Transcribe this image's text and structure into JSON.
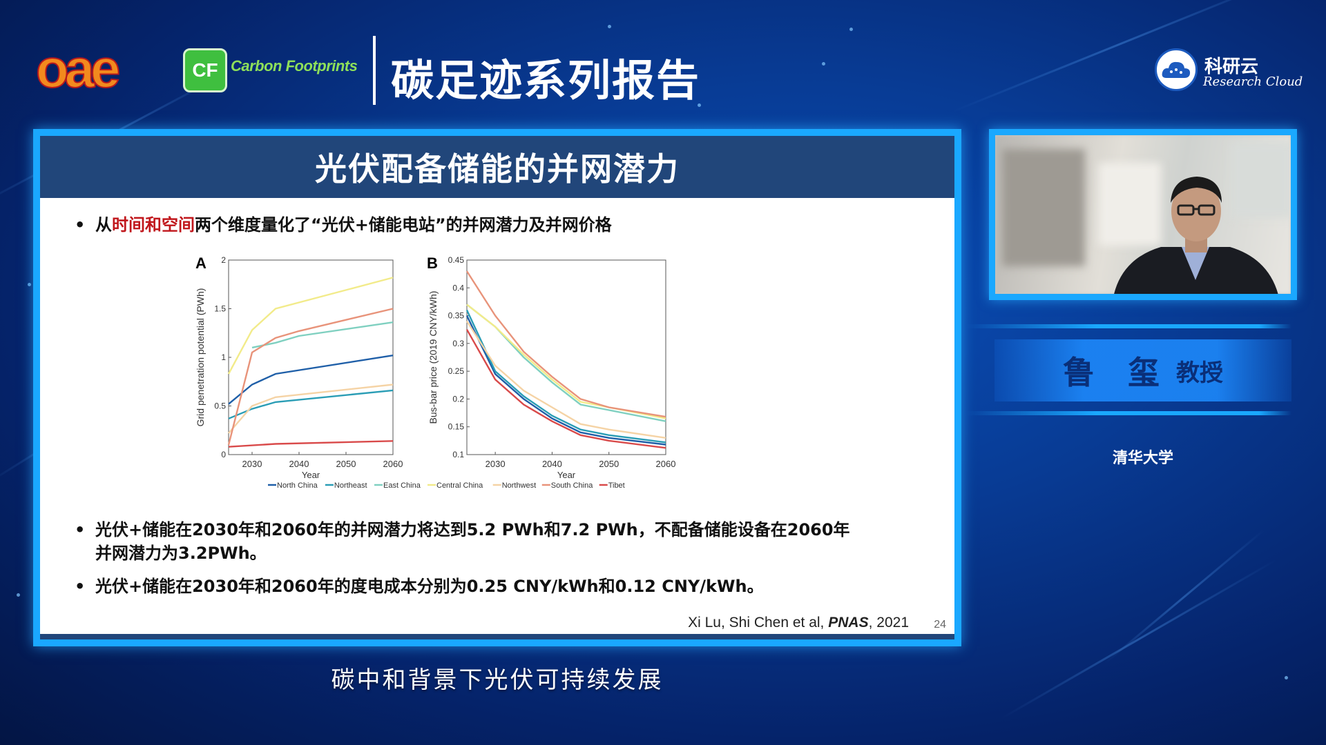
{
  "header": {
    "logo_text": "oae",
    "cf_badge": "CF",
    "cf_text": "Carbon Footprints",
    "title": "碳足迹系列报告",
    "brand_name": "科研云",
    "brand_sub": "Research Cloud"
  },
  "slide": {
    "title": "光伏配备储能的并网潜力",
    "bullet1": {
      "prefix": "从",
      "highlight": "时间和空间",
      "suffix": "两个维度量化了“光伏+储能电站”的并网潜力及并网价格"
    },
    "bullet2_line1": "光伏+储能在2030年和2060年的并网潜力将达到5.2 PWh和7.2 PWh，不配备储能设备在2060年",
    "bullet2_line2": "并网潜力为3.2PWh。",
    "bullet3": "光伏+储能在2030年和2060年的度电成本分别为0.25 CNY/kWh和0.12 CNY/kWh。",
    "bullet_mark": "•",
    "citation_authors": "Xi Lu, Shi Chen et al,",
    "citation_journal": "PNAS",
    "citation_year": ", 2021",
    "page_number": "24"
  },
  "speaker": {
    "name": "鲁 玺",
    "role": "教授",
    "affiliation": "清华大学"
  },
  "caption": "碳中和背景下光伏可持续发展",
  "chart_data": [
    {
      "type": "line",
      "panel_label": "A",
      "ylabel": "Grid penetration potential (PWh)",
      "xlabel": "Year",
      "xlim": [
        2025,
        2060
      ],
      "ylim": [
        0,
        2
      ],
      "xticks": [
        2030,
        2040,
        2050,
        2060
      ],
      "yticks": [
        0,
        0.5,
        1,
        1.5,
        2
      ],
      "ytick_labels": [
        "0",
        "0.5",
        "1",
        "1.5",
        "2"
      ],
      "series": [
        {
          "name": "North China",
          "color": "#1f5fa8",
          "points": [
            [
              2025,
              0.52
            ],
            [
              2030,
              0.72
            ],
            [
              2035,
              0.83
            ],
            [
              2060,
              1.02
            ]
          ]
        },
        {
          "name": "Northeast",
          "color": "#2a9db5",
          "points": [
            [
              2025,
              0.37
            ],
            [
              2030,
              0.47
            ],
            [
              2035,
              0.54
            ],
            [
              2060,
              0.66
            ]
          ]
        },
        {
          "name": "East China",
          "color": "#7fd0c0",
          "points": [
            [
              2030,
              1.1
            ],
            [
              2035,
              1.15
            ],
            [
              2040,
              1.22
            ],
            [
              2060,
              1.36
            ]
          ]
        },
        {
          "name": "Central China",
          "color": "#f2eb8a",
          "points": [
            [
              2025,
              0.83
            ],
            [
              2030,
              1.28
            ],
            [
              2035,
              1.5
            ],
            [
              2060,
              1.82
            ]
          ]
        },
        {
          "name": "Northwest",
          "color": "#f5d3a5",
          "points": [
            [
              2025,
              0.22
            ],
            [
              2030,
              0.5
            ],
            [
              2035,
              0.59
            ],
            [
              2060,
              0.72
            ]
          ]
        },
        {
          "name": "South China",
          "color": "#e8937a",
          "points": [
            [
              2025,
              0.1
            ],
            [
              2030,
              1.05
            ],
            [
              2035,
              1.2
            ],
            [
              2040,
              1.27
            ],
            [
              2060,
              1.5
            ]
          ]
        },
        {
          "name": "Tibet",
          "color": "#d94a4a",
          "points": [
            [
              2025,
              0.08
            ],
            [
              2035,
              0.11
            ],
            [
              2060,
              0.14
            ]
          ]
        }
      ]
    },
    {
      "type": "line",
      "panel_label": "B",
      "ylabel": "Bus-bar price (2019 CNY/kWh)",
      "xlabel": "Year",
      "xlim": [
        2025,
        2060
      ],
      "ylim": [
        0.1,
        0.45
      ],
      "xticks": [
        2030,
        2040,
        2050,
        2060
      ],
      "yticks": [
        0.1,
        0.15,
        0.2,
        0.25,
        0.3,
        0.35,
        0.4,
        0.45
      ],
      "ytick_labels": [
        "0.1",
        "0.15",
        "0.2",
        "0.25",
        "0.3",
        "0.35",
        "0.4",
        "0.45"
      ],
      "series": [
        {
          "name": "North China",
          "color": "#1f5fa8",
          "points": [
            [
              2025,
              0.35
            ],
            [
              2030,
              0.245
            ],
            [
              2035,
              0.2
            ],
            [
              2040,
              0.165
            ],
            [
              2045,
              0.14
            ],
            [
              2050,
              0.13
            ],
            [
              2060,
              0.118
            ]
          ]
        },
        {
          "name": "Northeast",
          "color": "#2a9db5",
          "points": [
            [
              2025,
              0.36
            ],
            [
              2030,
              0.25
            ],
            [
              2035,
              0.205
            ],
            [
              2040,
              0.17
            ],
            [
              2045,
              0.145
            ],
            [
              2050,
              0.135
            ],
            [
              2060,
              0.122
            ]
          ]
        },
        {
          "name": "East China",
          "color": "#7fd0c0",
          "points": [
            [
              2025,
              0.37
            ],
            [
              2030,
              0.33
            ],
            [
              2035,
              0.275
            ],
            [
              2040,
              0.23
            ],
            [
              2045,
              0.19
            ],
            [
              2050,
              0.18
            ],
            [
              2060,
              0.16
            ]
          ]
        },
        {
          "name": "Central China",
          "color": "#f2eb8a",
          "points": [
            [
              2025,
              0.37
            ],
            [
              2030,
              0.33
            ],
            [
              2035,
              0.28
            ],
            [
              2040,
              0.235
            ],
            [
              2045,
              0.195
            ],
            [
              2050,
              0.185
            ],
            [
              2060,
              0.165
            ]
          ]
        },
        {
          "name": "Northwest",
          "color": "#f5d3a5",
          "points": [
            [
              2025,
              0.34
            ],
            [
              2030,
              0.26
            ],
            [
              2035,
              0.215
            ],
            [
              2040,
              0.185
            ],
            [
              2045,
              0.155
            ],
            [
              2050,
              0.145
            ],
            [
              2060,
              0.13
            ]
          ]
        },
        {
          "name": "South China",
          "color": "#e8937a",
          "points": [
            [
              2025,
              0.43
            ],
            [
              2030,
              0.35
            ],
            [
              2035,
              0.285
            ],
            [
              2040,
              0.24
            ],
            [
              2045,
              0.2
            ],
            [
              2050,
              0.185
            ],
            [
              2060,
              0.168
            ]
          ]
        },
        {
          "name": "Tibet",
          "color": "#d94a4a",
          "points": [
            [
              2025,
              0.325
            ],
            [
              2030,
              0.235
            ],
            [
              2035,
              0.19
            ],
            [
              2040,
              0.16
            ],
            [
              2045,
              0.135
            ],
            [
              2050,
              0.125
            ],
            [
              2060,
              0.112
            ]
          ]
        }
      ]
    }
  ],
  "legend": [
    {
      "name": "North China",
      "color": "#1f5fa8"
    },
    {
      "name": "Northeast",
      "color": "#2a9db5"
    },
    {
      "name": "East China",
      "color": "#7fd0c0"
    },
    {
      "name": "Central China",
      "color": "#f2eb8a"
    },
    {
      "name": "Northwest",
      "color": "#f5d3a5"
    },
    {
      "name": "South China",
      "color": "#e8937a"
    },
    {
      "name": "Tibet",
      "color": "#d94a4a"
    }
  ]
}
